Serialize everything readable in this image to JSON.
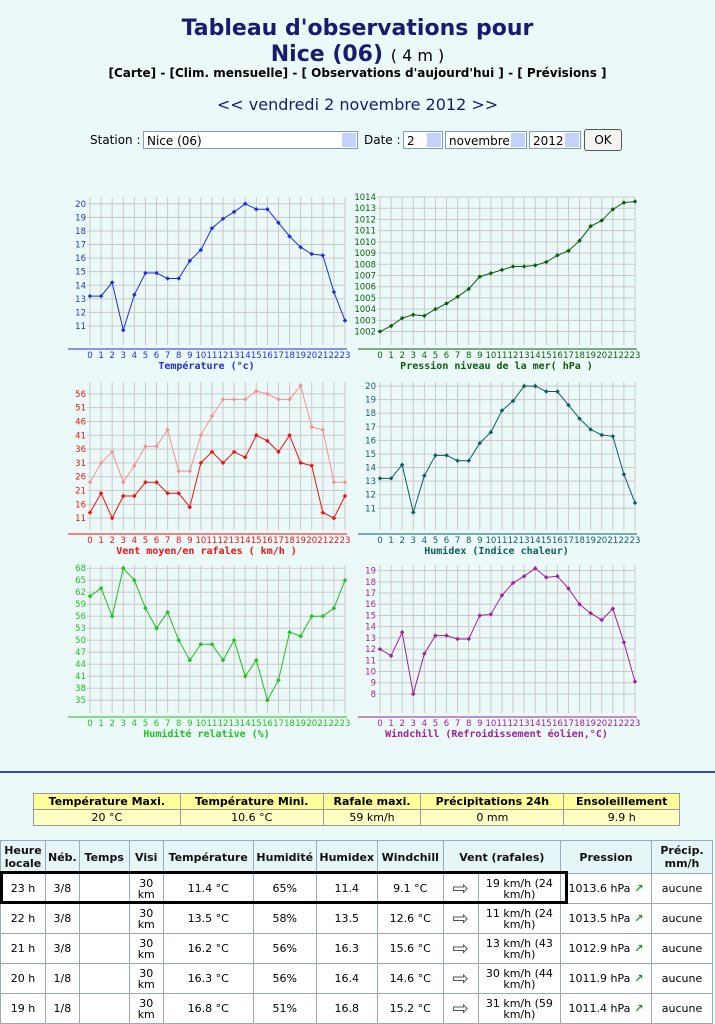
{
  "header": {
    "title": "Tableau d'observations pour",
    "station": "Nice (06)",
    "altitude": "( 4 m )",
    "nav": [
      "[Carte]",
      "-",
      "[Clim. mensuelle]",
      "-",
      "[ Observations d'aujourd'hui ]",
      "-",
      "[ Prévisions ]"
    ],
    "date": {
      "prev": "<<",
      "text": "vendredi 2 novembre 2012",
      "next": ">>"
    }
  },
  "form": {
    "station_label": "Station :",
    "station": "Nice (06)",
    "date_label": "Date :",
    "day": "2",
    "month": "novembre",
    "year": "2012",
    "button": "OK"
  },
  "chart_data": [
    {
      "type": "line",
      "title": "Température (°c)",
      "categories": [
        "0",
        "1",
        "2",
        "3",
        "4",
        "5",
        "6",
        "7",
        "8",
        "9",
        "10",
        "11",
        "12",
        "13",
        "14",
        "15",
        "16",
        "17",
        "18",
        "19",
        "20",
        "21",
        "22",
        "23"
      ],
      "series": [
        {
          "color": "#1f2fe0",
          "values": [
            13.2,
            13.2,
            14.2,
            10.7,
            13.3,
            14.9,
            14.9,
            14.5,
            14.5,
            15.8,
            16.6,
            18.2,
            18.9,
            19.4,
            20,
            19.6,
            19.6,
            18.6,
            17.6,
            16.8,
            16.3,
            16.2,
            13.5,
            11.4
          ]
        }
      ],
      "ylim": [
        9.6,
        20.5
      ],
      "yticks": [
        11,
        12,
        13,
        14,
        15,
        16,
        17,
        18,
        19,
        20
      ],
      "grid": true
    },
    {
      "type": "line",
      "title": "Pression niveau de la mer( hPa )",
      "categories": [
        "0",
        "1",
        "2",
        "3",
        "4",
        "5",
        "6",
        "7",
        "8",
        "9",
        "10",
        "11",
        "12",
        "13",
        "14",
        "15",
        "16",
        "17",
        "18",
        "19",
        "20",
        "21",
        "22",
        "23"
      ],
      "series": [
        {
          "color": "#0b5e0b",
          "values": [
            1002,
            1002.5,
            1003.2,
            1003.5,
            1003.4,
            1004,
            1004.5,
            1005.1,
            1005.8,
            1006.9,
            1007.2,
            1007.5,
            1007.8,
            1007.8,
            1007.9,
            1008.2,
            1008.8,
            1009.2,
            1010.1,
            1011.4,
            1011.9,
            1012.9,
            1013.5,
            1013.6
          ]
        }
      ],
      "ylim": [
        1000.8,
        1014
      ],
      "yticks": [
        1002,
        1003,
        1004,
        1005,
        1006,
        1007,
        1008,
        1009,
        1010,
        1011,
        1012,
        1013,
        1014
      ],
      "grid": true
    },
    {
      "type": "line",
      "title": "Vent moyen/en rafales ( km/h )",
      "categories": [
        "0",
        "1",
        "2",
        "3",
        "4",
        "5",
        "6",
        "7",
        "8",
        "9",
        "10",
        "11",
        "12",
        "13",
        "14",
        "15",
        "16",
        "17",
        "18",
        "19",
        "20",
        "21",
        "22",
        "23"
      ],
      "series": [
        {
          "color": "#f01010",
          "values": [
            13,
            20,
            11,
            19,
            19,
            24,
            24,
            20,
            20,
            15,
            31,
            35,
            31,
            35,
            33,
            41,
            39,
            35,
            41,
            31,
            30,
            13,
            11,
            19
          ]
        },
        {
          "color": "#f59090",
          "values": [
            24,
            31,
            35,
            24,
            30,
            37,
            37,
            43,
            28,
            28,
            41,
            48,
            54,
            54,
            54,
            57,
            56,
            54,
            54,
            59,
            44,
            43,
            24,
            24
          ]
        }
      ],
      "ylim": [
        6.7,
        60.3
      ],
      "yticks": [
        11,
        16,
        21,
        26,
        31,
        36,
        41,
        46,
        51,
        56
      ],
      "grid": true
    },
    {
      "type": "line",
      "title": "Humidex (Indice chaleur)",
      "categories": [
        "0",
        "1",
        "2",
        "3",
        "4",
        "5",
        "6",
        "7",
        "8",
        "9",
        "10",
        "11",
        "12",
        "13",
        "14",
        "15",
        "16",
        "17",
        "18",
        "19",
        "20",
        "21",
        "22",
        "23"
      ],
      "series": [
        {
          "color": "#0d5f5f",
          "values": [
            13.2,
            13.2,
            14.2,
            10.7,
            13.4,
            14.9,
            14.9,
            14.5,
            14.5,
            15.8,
            16.6,
            18.2,
            18.9,
            20,
            20,
            19.6,
            19.6,
            18.6,
            17.6,
            16.8,
            16.4,
            16.3,
            13.5,
            11.4
          ]
        }
      ],
      "ylim": [
        9.4,
        20.3
      ],
      "yticks": [
        11,
        12,
        13,
        14,
        15,
        16,
        17,
        18,
        19,
        20
      ],
      "grid": true
    },
    {
      "type": "line",
      "title": "Humidité relative (%)",
      "categories": [
        "0",
        "1",
        "2",
        "3",
        "4",
        "5",
        "6",
        "7",
        "8",
        "9",
        "10",
        "11",
        "12",
        "13",
        "14",
        "15",
        "16",
        "17",
        "18",
        "19",
        "20",
        "21",
        "22",
        "23"
      ],
      "series": [
        {
          "color": "#20c020",
          "values": [
            61,
            63,
            56,
            68,
            65,
            58,
            53,
            57,
            50,
            45,
            49,
            49,
            45,
            50,
            41,
            45,
            35,
            40,
            52,
            51,
            56,
            56,
            58,
            65
          ]
        }
      ],
      "ylim": [
        31.8,
        68.8
      ],
      "yticks": [
        35,
        38,
        41,
        44,
        47,
        50,
        53,
        56,
        59,
        62,
        65,
        68
      ],
      "grid": true
    },
    {
      "type": "line",
      "title": "Windchill (Refroidissement éolien,°C)",
      "categories": [
        "0",
        "1",
        "2",
        "3",
        "4",
        "5",
        "6",
        "7",
        "8",
        "9",
        "10",
        "11",
        "12",
        "13",
        "14",
        "15",
        "16",
        "17",
        "18",
        "19",
        "20",
        "21",
        "22",
        "23"
      ],
      "series": [
        {
          "color": "#a020a0",
          "values": [
            12,
            11.4,
            13.5,
            8,
            11.6,
            13.2,
            13.2,
            12.9,
            12.9,
            15,
            15.1,
            16.8,
            17.9,
            18.5,
            19.2,
            18.4,
            18.5,
            17.4,
            16,
            15.2,
            14.6,
            15.6,
            12.6,
            9.1
          ]
        }
      ],
      "ylim": [
        6.3,
        19.5
      ],
      "yticks": [
        8,
        9,
        10,
        11,
        12,
        13,
        14,
        15,
        16,
        17,
        18,
        19
      ],
      "grid": true
    }
  ],
  "summary": {
    "headers": [
      "Température Maxi.",
      "Température Mini.",
      "Rafale maxi.",
      "Précipitations 24h",
      "Ensoleillement"
    ],
    "values": [
      "20 °C",
      "10.6 °C",
      "59 km/h",
      "0 mm",
      "9.9 h"
    ]
  },
  "obs_table": {
    "headers": [
      "Heure locale",
      "Néb.",
      "Temps",
      "Visi",
      "Température",
      "Humidité",
      "Humidex",
      "Windchill",
      "Vent (rafales)",
      "Pression",
      "Précip. mm/h"
    ],
    "rows": [
      {
        "heure": "23 h",
        "neb": "3/8",
        "visi": "30 km",
        "temperature": "11.4 °C",
        "humidite": "65%",
        "humidex": "11.4",
        "windchill": "9.1 °C",
        "vent": "19 km/h (24 km/h)",
        "pression": "1013.6 hPa",
        "precip": "aucune"
      },
      {
        "heure": "22 h",
        "neb": "3/8",
        "visi": "30 km",
        "temperature": "13.5 °C",
        "humidite": "58%",
        "humidex": "13.5",
        "windchill": "12.6 °C",
        "vent": "11 km/h (24 km/h)",
        "pression": "1013.5 hPa",
        "precip": "aucune"
      },
      {
        "heure": "21 h",
        "neb": "3/8",
        "visi": "30 km",
        "temperature": "16.2 °C",
        "humidite": "56%",
        "humidex": "16.3",
        "windchill": "15.6 °C",
        "vent": "13 km/h (43 km/h)",
        "pression": "1012.9 hPa",
        "precip": "aucune"
      },
      {
        "heure": "20 h",
        "neb": "1/8",
        "visi": "30 km",
        "temperature": "16.3 °C",
        "humidite": "56%",
        "humidex": "16.4",
        "windchill": "14.6 °C",
        "vent": "30 km/h (44 km/h)",
        "pression": "1011.9 hPa",
        "precip": "aucune"
      },
      {
        "heure": "19 h",
        "neb": "1/8",
        "visi": "30 km",
        "temperature": "16.8 °C",
        "humidite": "51%",
        "humidex": "16.8",
        "windchill": "15.2 °C",
        "vent": "31 km/h (59 km/h)",
        "pression": "1011.4 hPa",
        "precip": "aucune"
      }
    ]
  }
}
